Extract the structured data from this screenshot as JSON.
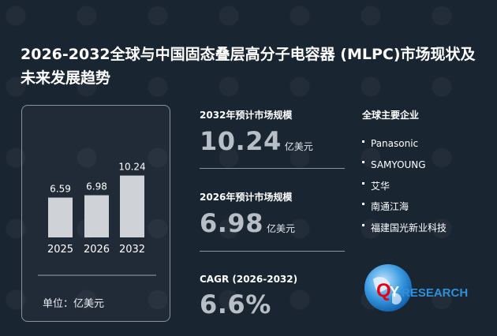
{
  "title": "2026-2032全球与中国固态叠层高分子电容器 (MLPC)市场现状及未来发展趋势",
  "chart_data": {
    "type": "bar",
    "categories": [
      "2025",
      "2026",
      "2032"
    ],
    "values": [
      6.59,
      6.98,
      10.24
    ],
    "value_labels": [
      "6.59",
      "6.98",
      "10.24"
    ],
    "unit": "单位：亿美元",
    "xlabel": "",
    "ylabel": "",
    "grid": false,
    "bar_color": "#cfd3d7"
  },
  "stats": [
    {
      "label": "2032年预计市场规模",
      "value": "10.24",
      "unit": "亿美元"
    },
    {
      "label": "2026年预计市场规模",
      "value": "6.98",
      "unit": "亿美元"
    },
    {
      "label": "CAGR (2026-2032)",
      "value": "6.6%",
      "unit": ""
    }
  ],
  "companies": {
    "head": "全球主要企业",
    "items": [
      "Panasonic",
      "SAMYOUNG",
      "艾华",
      "南通江海",
      "福建国光新业科技"
    ]
  },
  "logo": {
    "text": "QYRESEARCH",
    "icon": "globe-icon",
    "colors": {
      "q": "#e60012",
      "globe": "#2f8fd8",
      "research": "#2f8fd8"
    }
  }
}
